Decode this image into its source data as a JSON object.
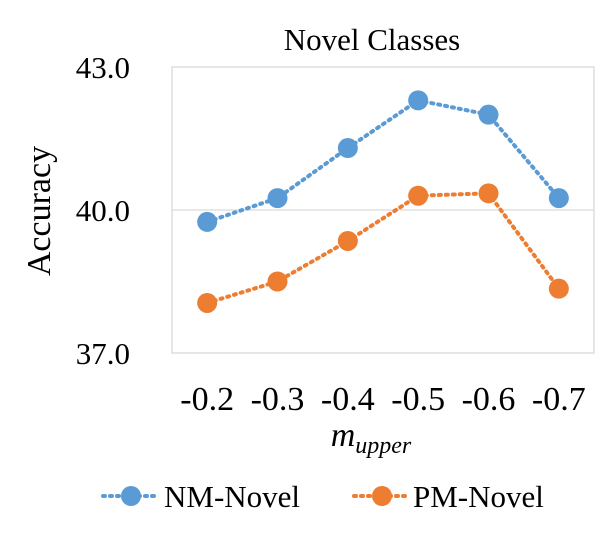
{
  "chart_data": {
    "type": "line",
    "title": "Novel Classes",
    "xlabel": "m",
    "xlabel_subscript": "upper",
    "ylabel": "Accuracy",
    "categories": [
      "-0.2",
      "-0.3",
      "-0.4",
      "-0.5",
      "-0.6",
      "-0.7"
    ],
    "y_ticks": [
      "37.0",
      "40.0",
      "43.0"
    ],
    "ylim": [
      37.0,
      43.0
    ],
    "grid": "horizontal major gridlines",
    "legend_position": "bottom",
    "series": [
      {
        "name": "NM-Novel",
        "color": "#5b9bd5",
        "line_style": "dotted",
        "marker": "circle",
        "values": [
          39.75,
          40.25,
          41.3,
          42.3,
          42.0,
          40.25
        ]
      },
      {
        "name": "PM-Novel",
        "color": "#ed7d31",
        "line_style": "dotted",
        "marker": "circle",
        "values": [
          38.05,
          38.5,
          39.35,
          40.3,
          40.35,
          38.35
        ]
      }
    ]
  }
}
